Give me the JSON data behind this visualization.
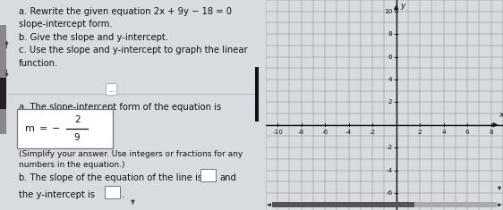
{
  "title_a": "a. Rewrite the given equation 2x + 9y − 18 = 0",
  "title_a2": "slope-intercept form.",
  "title_b": "b. Give the slope and y-intercept.",
  "title_c": "c. Use the slope and y-intercept to graph the linear",
  "title_c2": "function.",
  "section_a_label": "a. The slope-intercept form of the equation is",
  "box_num": "2",
  "box_den": "9",
  "simplify_note": "(Simplify your answer. Use integers or fractions for any",
  "simplify_note2": "numbers in the equation.)",
  "section_b_label": "b. The slope of the equation of the line is",
  "section_b2": "and",
  "section_b3": "the y-intercept is",
  "bg_color": "#d8dce0",
  "left_bg": "#f5f5f5",
  "grid_bg": "#ffffff",
  "grid_line_color": "#888888",
  "axis_color": "#111111",
  "text_color": "#111111",
  "x_axis_label": "x",
  "y_axis_label": "y",
  "x_ticks_labeled": [
    -10,
    -8,
    -6,
    -4,
    -2,
    2,
    4,
    6,
    8
  ],
  "y_ticks_labeled": [
    -6,
    -4,
    -2,
    2,
    4,
    6,
    8,
    10
  ],
  "x_lim": [
    -11,
    9
  ],
  "y_lim": [
    -7.5,
    11
  ],
  "font_size_main": 7.2,
  "font_size_box": 8.0,
  "font_size_note": 6.5,
  "dot_ellipsis": "...",
  "scrollbar_color": "#555555",
  "scrollbar_thumb": "#333333",
  "left_arrow_color": "#555555",
  "up_arrow_color": "#555555",
  "ibeam_color": "#222222",
  "separator_color": "#cccccc",
  "divider_color": "#bbbbbb"
}
